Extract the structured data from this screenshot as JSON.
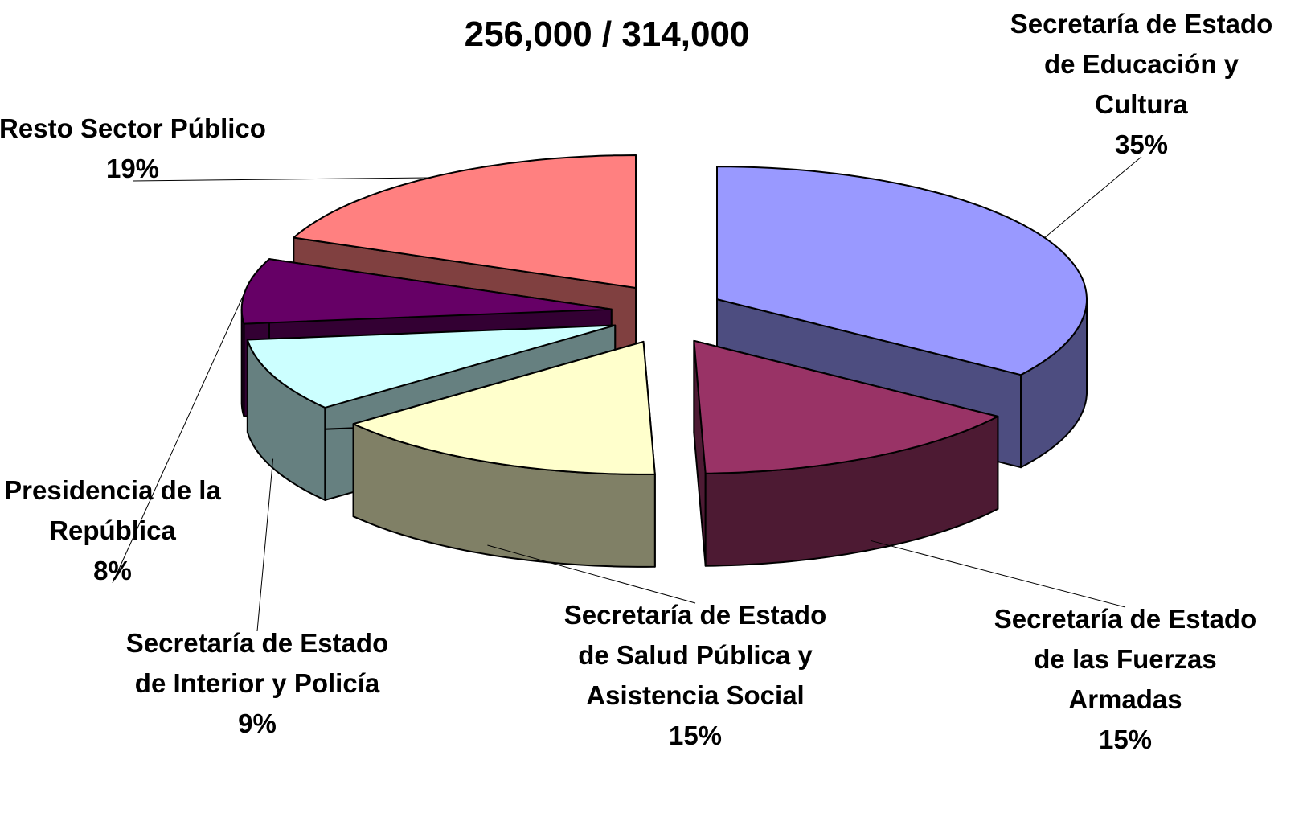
{
  "chart_data": {
    "type": "pie3d",
    "title": "256,000 / 314,000",
    "categories": [
      "Secretaría de Estado de Educación y Cultura",
      "Secretaría de Estado de las Fuerzas Armadas",
      "Secretaría de Estado de Salud Pública y Asistencia Social",
      "Secretaría de Estado de Interior y Policía",
      "Presidencia de la República",
      "Resto Sector Público"
    ],
    "values": [
      35,
      15,
      15,
      9,
      8,
      19
    ],
    "value_labels": [
      "35%",
      "15%",
      "15%",
      "9%",
      "8%",
      "19%"
    ],
    "colors": [
      "#9999ff",
      "#993366",
      "#ffffcc",
      "#ccffff",
      "#660066",
      "#ff8080"
    ]
  }
}
